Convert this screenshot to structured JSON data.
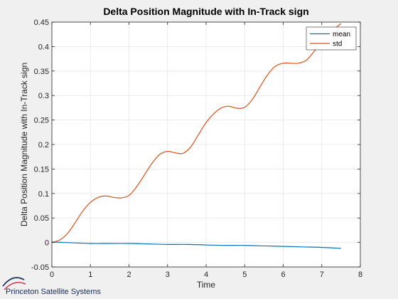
{
  "chart_data": {
    "type": "line",
    "title": "Delta Position Magnitude with In-Track sign",
    "xlabel": "Time",
    "ylabel": "Delta Position Magnitude with In-Track sign",
    "xlim": [
      0,
      8
    ],
    "ylim": [
      -0.05,
      0.45
    ],
    "xticks": [
      0,
      1,
      2,
      3,
      4,
      5,
      6,
      7,
      8
    ],
    "yticks": [
      -0.05,
      0,
      0.05,
      0.1,
      0.15,
      0.2,
      0.25,
      0.3,
      0.35,
      0.4,
      0.45
    ],
    "grid": true,
    "legend_position": "top-right",
    "series": [
      {
        "name": "mean",
        "color": "#0072BD",
        "x": [
          0,
          0.5,
          1,
          1.5,
          2,
          2.5,
          3,
          3.5,
          4,
          4.5,
          5,
          5.5,
          6,
          6.5,
          7,
          7.5
        ],
        "y": [
          0.001,
          -0.0005,
          -0.002,
          -0.002,
          -0.002,
          -0.003,
          -0.004,
          -0.004,
          -0.005,
          -0.006,
          -0.006,
          -0.007,
          -0.008,
          -0.009,
          -0.01,
          -0.012
        ]
      },
      {
        "name": "std",
        "color": "#D95319",
        "x": [
          0,
          0.2,
          0.4,
          0.6,
          0.8,
          1,
          1.2,
          1.4,
          1.6,
          1.8,
          2,
          2.2,
          2.4,
          2.6,
          2.8,
          3,
          3.2,
          3.4,
          3.6,
          3.8,
          4,
          4.2,
          4.4,
          4.6,
          4.8,
          5,
          5.2,
          5.4,
          5.6,
          5.8,
          6,
          6.2,
          6.4,
          6.6,
          6.8,
          7,
          7.2,
          7.4,
          7.5
        ],
        "y": [
          0.0,
          0.005,
          0.018,
          0.04,
          0.064,
          0.082,
          0.092,
          0.095,
          0.092,
          0.091,
          0.096,
          0.114,
          0.138,
          0.162,
          0.18,
          0.186,
          0.183,
          0.182,
          0.195,
          0.22,
          0.245,
          0.263,
          0.275,
          0.278,
          0.274,
          0.276,
          0.292,
          0.318,
          0.343,
          0.36,
          0.366,
          0.366,
          0.366,
          0.372,
          0.39,
          0.41,
          0.427,
          0.441,
          0.447
        ]
      }
    ]
  },
  "logo": {
    "text": "Princeton Satellite Systems"
  }
}
